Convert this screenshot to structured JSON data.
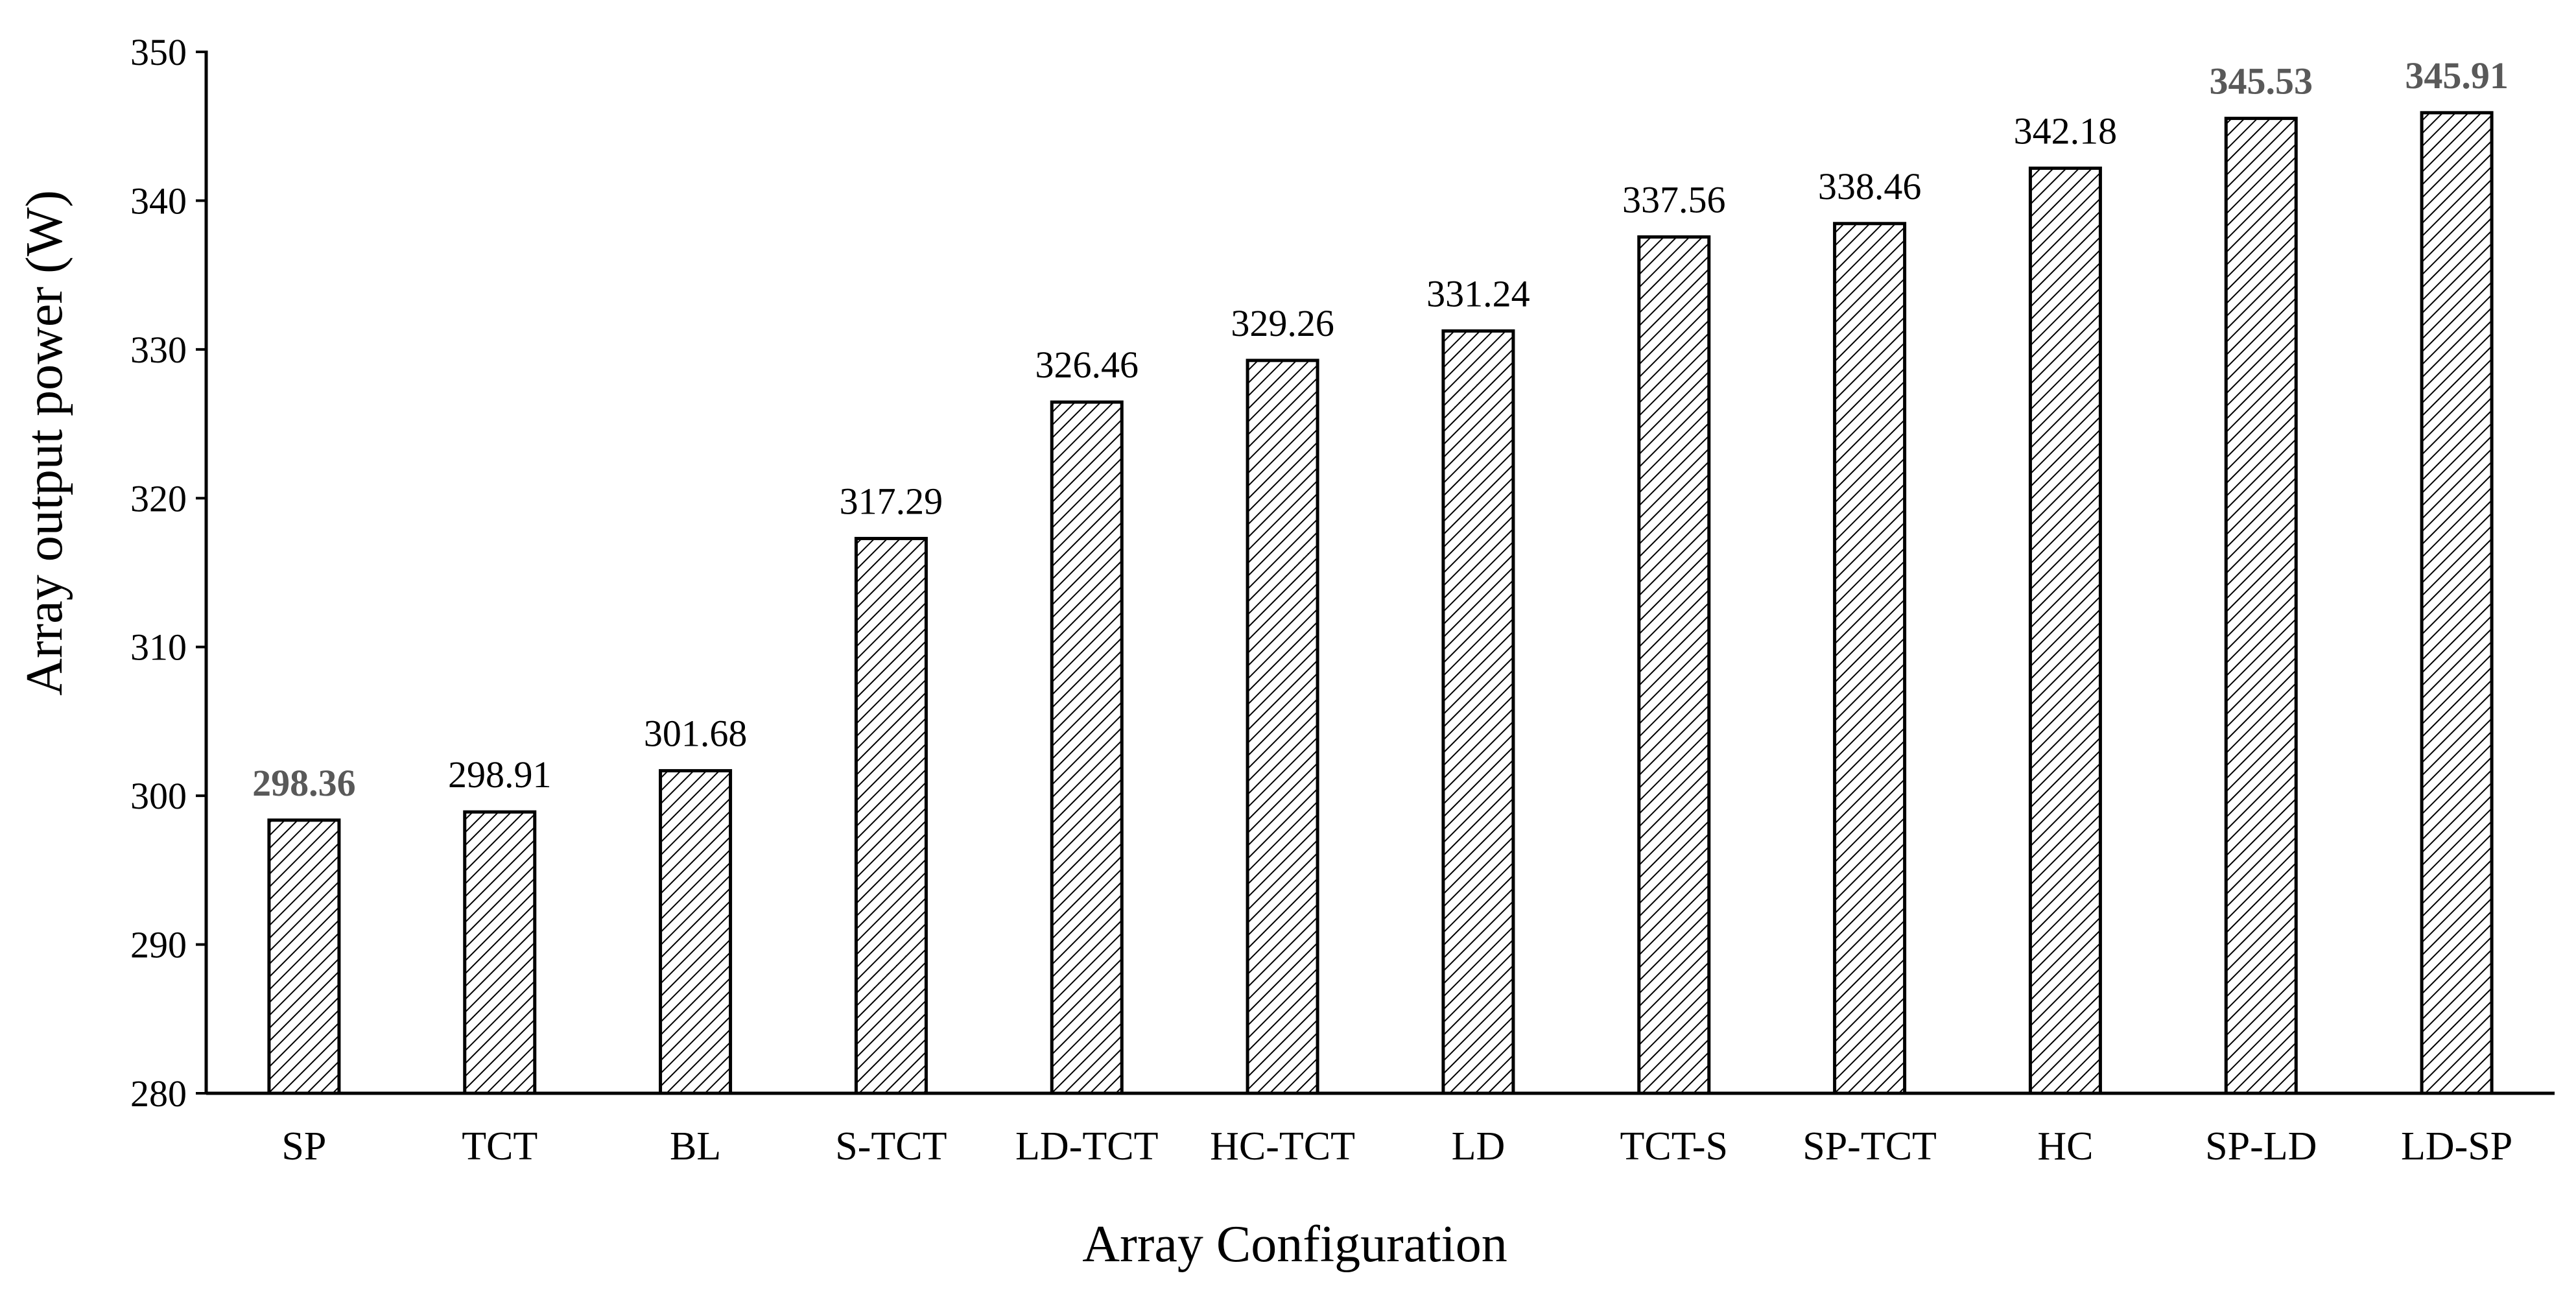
{
  "chart_data": {
    "type": "bar",
    "title": "",
    "xlabel": "Array Configuration",
    "ylabel": "Array output power (W)",
    "ylim": [
      280,
      350
    ],
    "yticks": [
      280,
      290,
      300,
      310,
      320,
      330,
      340,
      350
    ],
    "grid": false,
    "legend": "none",
    "bar_fill": "diagonal-hatch",
    "colors": {
      "bar_stroke": "#000000",
      "hatch": "#000000",
      "axis": "#000000",
      "emphasized_label": "#595959"
    },
    "categories": [
      "SP",
      "TCT",
      "BL",
      "S-TCT",
      "LD-TCT",
      "HC-TCT",
      "LD",
      "TCT-S",
      "SP-TCT",
      "HC",
      "SP-LD",
      "LD-SP"
    ],
    "values": [
      298.36,
      298.91,
      301.68,
      317.29,
      326.46,
      329.26,
      331.24,
      337.56,
      338.46,
      342.18,
      345.53,
      345.91
    ],
    "data_labels": [
      "298.36",
      "298.91",
      "301.68",
      "317.29",
      "326.46",
      "329.26",
      "331.24",
      "337.56",
      "338.46",
      "342.18",
      "345.53",
      "345.91"
    ],
    "emphasized_labels": [
      "SP",
      "SP-LD",
      "LD-SP"
    ]
  }
}
